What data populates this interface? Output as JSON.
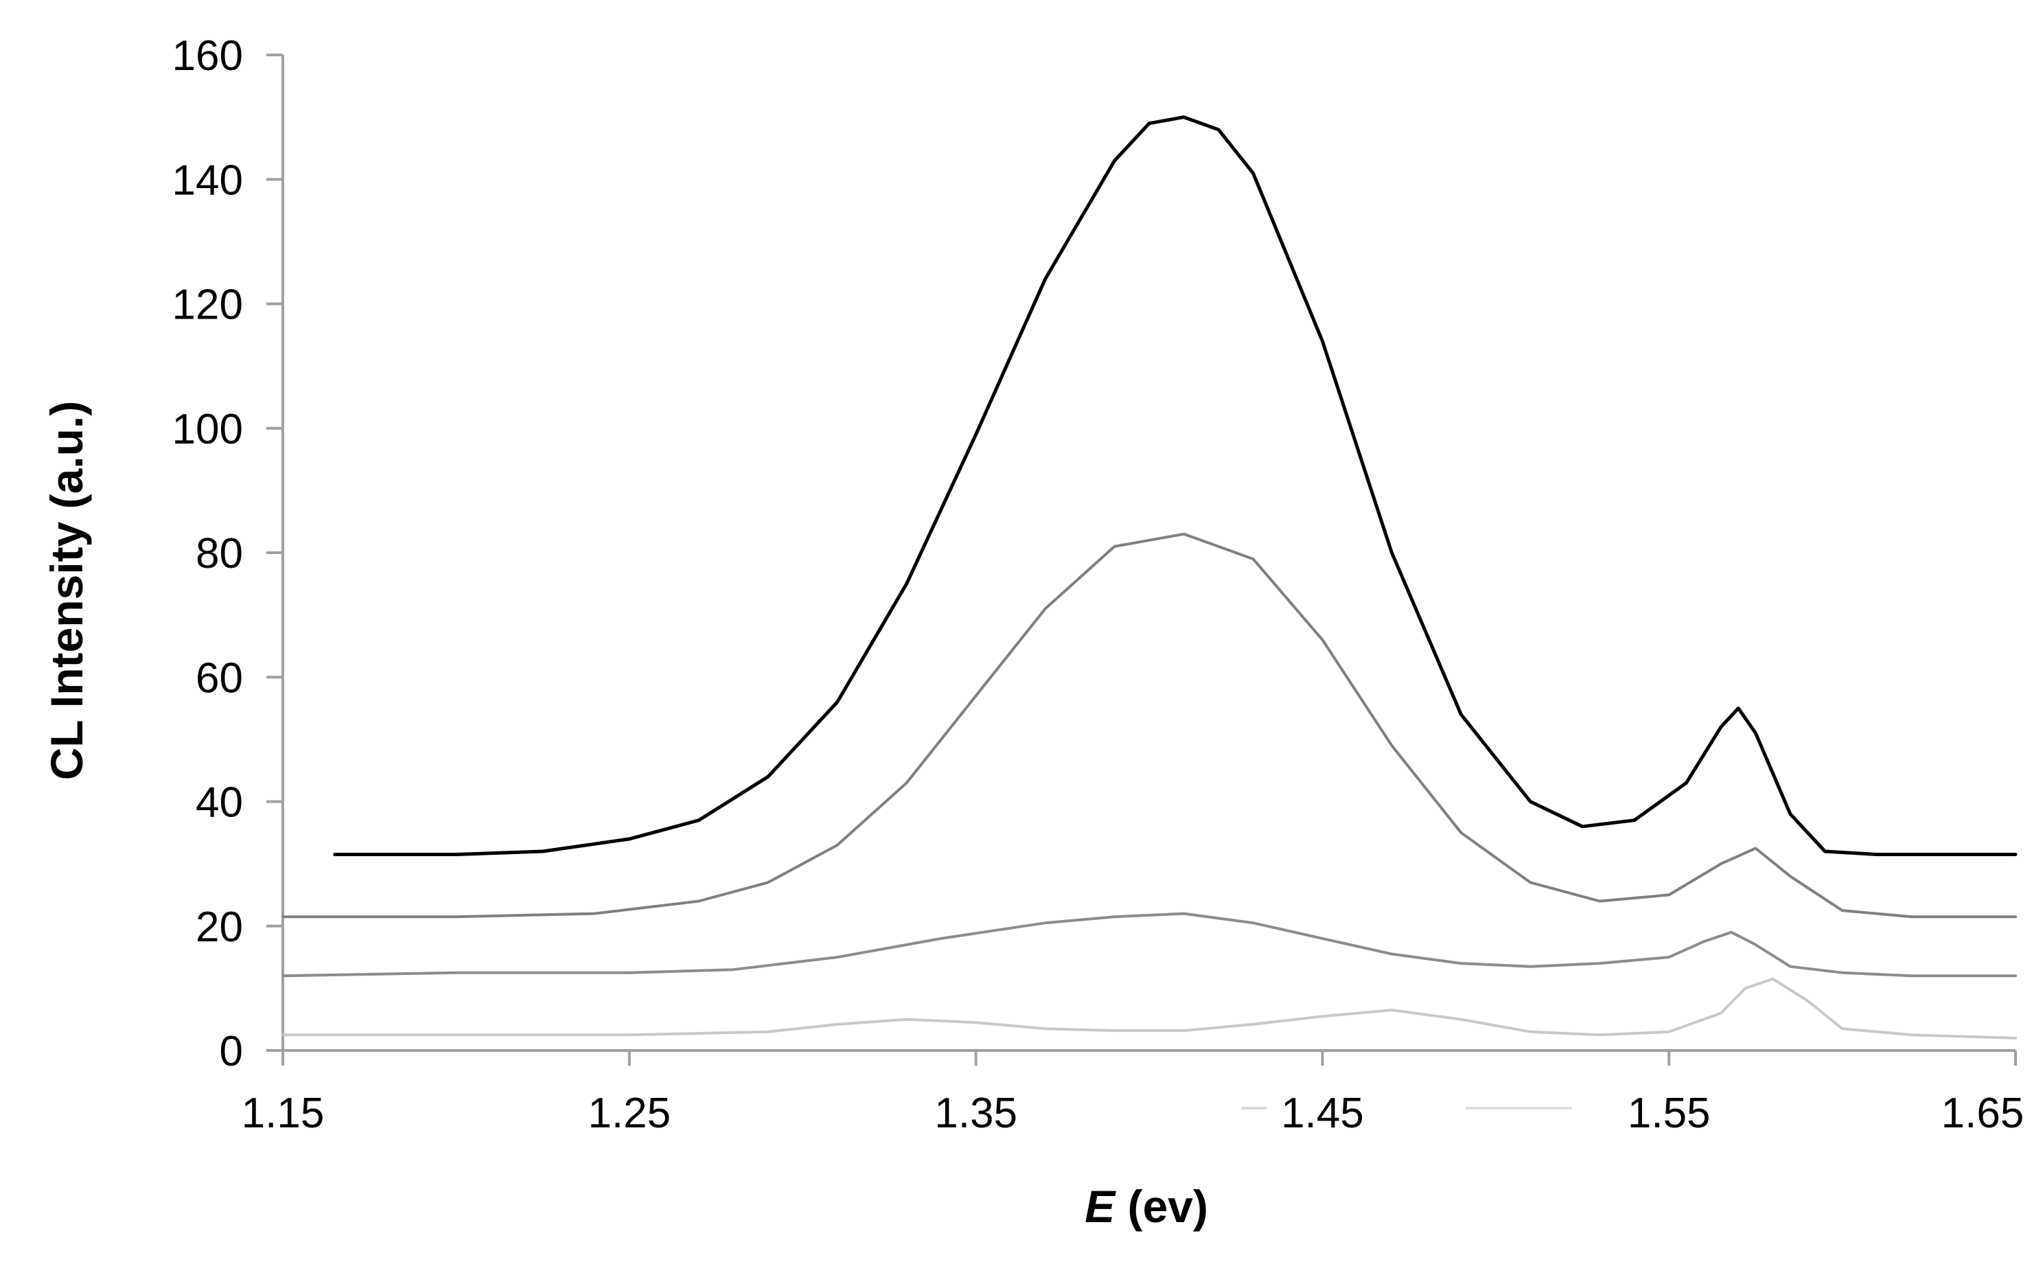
{
  "chart_data": {
    "type": "line",
    "title": "",
    "ylabel": "CL Intensity (a.u.)",
    "xlabel": {
      "symbol": "E",
      "unit": " (ev)"
    },
    "xlim": [
      1.15,
      1.65
    ],
    "ylim": [
      0,
      160
    ],
    "xticks": [
      "1.15",
      "1.25",
      "1.35",
      "1.45",
      "1.55",
      "1.65"
    ],
    "xtick_values": [
      1.15,
      1.25,
      1.35,
      1.45,
      1.55,
      1.65
    ],
    "yticks": [
      "0",
      "20",
      "40",
      "60",
      "80",
      "100",
      "120",
      "140",
      "160"
    ],
    "ytick_values": [
      0,
      20,
      40,
      60,
      80,
      100,
      120,
      140,
      160
    ],
    "grid": false,
    "legend": "bottom (entries unlabeled)",
    "series": [
      {
        "color": "#000000",
        "x": [
          1.165,
          1.2,
          1.225,
          1.25,
          1.27,
          1.29,
          1.31,
          1.33,
          1.35,
          1.37,
          1.39,
          1.4,
          1.41,
          1.42,
          1.43,
          1.45,
          1.47,
          1.49,
          1.51,
          1.525,
          1.54,
          1.555,
          1.565,
          1.57,
          1.575,
          1.585,
          1.595,
          1.61,
          1.63,
          1.65
        ],
        "values": [
          31.5,
          31.5,
          32,
          34,
          37,
          44,
          56,
          75,
          99,
          124,
          143,
          149,
          150,
          148,
          141,
          114,
          80,
          54,
          40,
          36,
          37,
          43,
          52,
          55,
          51,
          38,
          32,
          31.5,
          31.5,
          31.5
        ]
      },
      {
        "color": "#808080",
        "x": [
          1.15,
          1.2,
          1.24,
          1.27,
          1.29,
          1.31,
          1.33,
          1.35,
          1.37,
          1.39,
          1.41,
          1.43,
          1.45,
          1.47,
          1.49,
          1.51,
          1.53,
          1.55,
          1.565,
          1.575,
          1.585,
          1.6,
          1.62,
          1.65
        ],
        "values": [
          21.5,
          21.5,
          22,
          24,
          27,
          33,
          43,
          57,
          71,
          81,
          83,
          79,
          66,
          49,
          35,
          27,
          24,
          25,
          30,
          32.5,
          28,
          22.5,
          21.5,
          21.5
        ]
      },
      {
        "color": "#8c8c8c",
        "x": [
          1.15,
          1.2,
          1.25,
          1.28,
          1.31,
          1.34,
          1.37,
          1.39,
          1.41,
          1.43,
          1.45,
          1.47,
          1.49,
          1.51,
          1.53,
          1.55,
          1.56,
          1.568,
          1.575,
          1.585,
          1.6,
          1.62,
          1.65
        ],
        "values": [
          12,
          12.5,
          12.5,
          13,
          15,
          18,
          20.5,
          21.5,
          22,
          20.5,
          18,
          15.5,
          14,
          13.5,
          14,
          15,
          17.5,
          19,
          17,
          13.5,
          12.5,
          12,
          12
        ]
      },
      {
        "color": "#c8c8c8",
        "x": [
          1.15,
          1.2,
          1.25,
          1.29,
          1.31,
          1.33,
          1.35,
          1.37,
          1.39,
          1.41,
          1.43,
          1.45,
          1.47,
          1.49,
          1.51,
          1.53,
          1.55,
          1.565,
          1.572,
          1.58,
          1.59,
          1.6,
          1.62,
          1.65
        ],
        "values": [
          2.5,
          2.5,
          2.5,
          3,
          4.2,
          5,
          4.5,
          3.5,
          3.2,
          3.2,
          4.2,
          5.5,
          6.5,
          5,
          3,
          2.5,
          3,
          6,
          10,
          11.5,
          8,
          3.5,
          2.5,
          2
        ]
      }
    ]
  }
}
